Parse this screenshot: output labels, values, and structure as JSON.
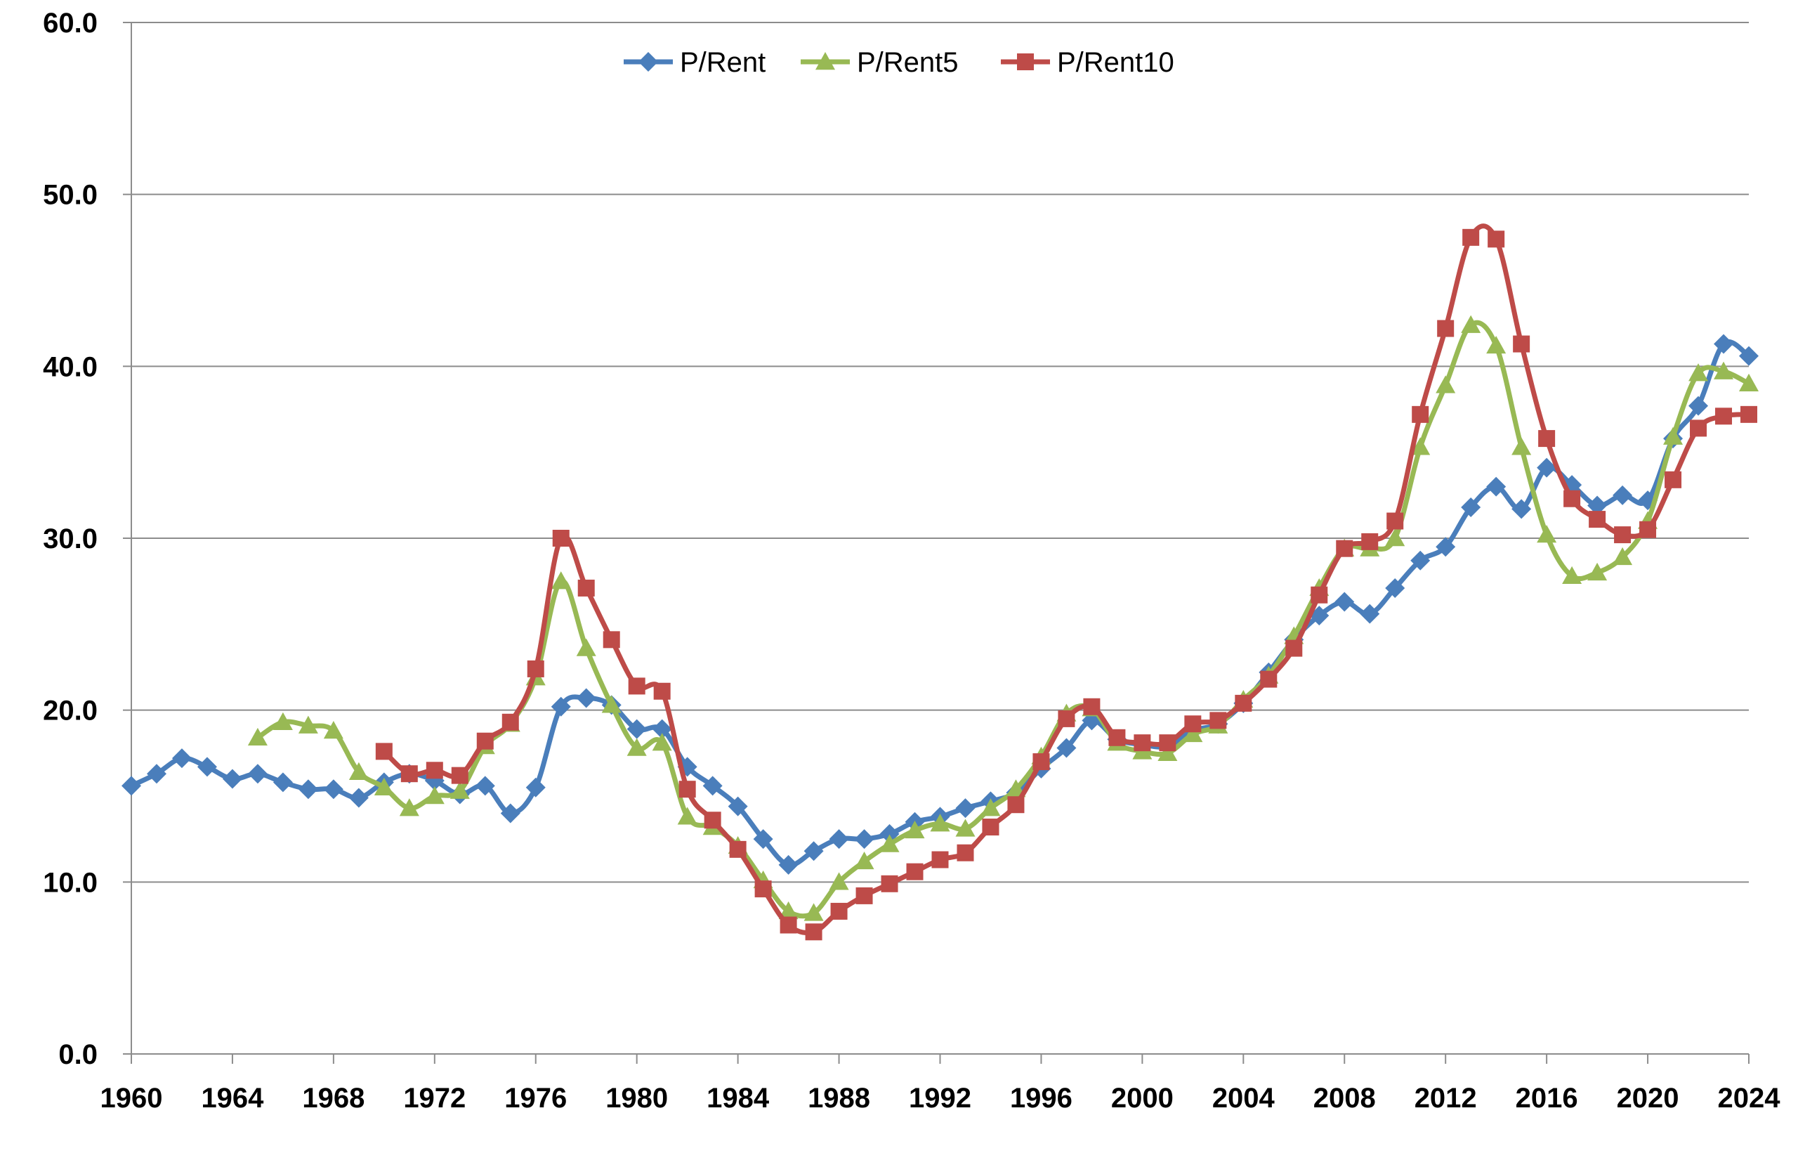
{
  "chart_data": {
    "type": "line",
    "title": "",
    "xlabel": "",
    "ylabel": "",
    "xlim": [
      1960,
      2024
    ],
    "ylim": [
      0,
      60
    ],
    "x_ticks": [
      1960,
      1964,
      1968,
      1972,
      1976,
      1980,
      1984,
      1988,
      1992,
      1996,
      2000,
      2004,
      2008,
      2012,
      2016,
      2020,
      2024
    ],
    "x_tick_labels": [
      "1960",
      "1964",
      "1968",
      "1972",
      "1976",
      "1980",
      "1984",
      "1988",
      "1992",
      "1996",
      "2000",
      "2004",
      "2008",
      "2012",
      "2016",
      "2020",
      "2024"
    ],
    "y_ticks": [
      0,
      10,
      20,
      30,
      40,
      50,
      60
    ],
    "y_tick_labels": [
      "0.0",
      "10.0",
      "20.0",
      "30.0",
      "40.0",
      "50.0",
      "60.0"
    ],
    "grid": "horizontal",
    "legend_position": "top-center",
    "series": [
      {
        "name": "P/Rent",
        "color": "#4a7ebb",
        "marker": "diamond",
        "points": [
          [
            1960,
            15.6
          ],
          [
            1961,
            16.3
          ],
          [
            1962,
            17.2
          ],
          [
            1963,
            16.7
          ],
          [
            1964,
            16.0
          ],
          [
            1965,
            16.3
          ],
          [
            1966,
            15.8
          ],
          [
            1967,
            15.4
          ],
          [
            1968,
            15.4
          ],
          [
            1969,
            14.9
          ],
          [
            1970,
            15.8
          ],
          [
            1971,
            16.3
          ],
          [
            1972,
            15.9
          ],
          [
            1973,
            15.1
          ],
          [
            1974,
            15.6
          ],
          [
            1975,
            14.0
          ],
          [
            1976,
            15.5
          ],
          [
            1977,
            20.2
          ],
          [
            1978,
            20.7
          ],
          [
            1979,
            20.3
          ],
          [
            1980,
            18.9
          ],
          [
            1981,
            18.9
          ],
          [
            1982,
            16.7
          ],
          [
            1983,
            15.6
          ],
          [
            1984,
            14.4
          ],
          [
            1985,
            12.5
          ],
          [
            1986,
            11.0
          ],
          [
            1987,
            11.8
          ],
          [
            1988,
            12.5
          ],
          [
            1989,
            12.5
          ],
          [
            1990,
            12.8
          ],
          [
            1991,
            13.5
          ],
          [
            1992,
            13.8
          ],
          [
            1993,
            14.3
          ],
          [
            1994,
            14.7
          ],
          [
            1995,
            15.2
          ],
          [
            1996,
            16.6
          ],
          [
            1997,
            17.8
          ],
          [
            1998,
            19.4
          ],
          [
            1999,
            18.3
          ],
          [
            2000,
            18.0
          ],
          [
            2001,
            17.9
          ],
          [
            2002,
            18.8
          ],
          [
            2003,
            19.2
          ],
          [
            2004,
            20.4
          ],
          [
            2005,
            22.2
          ],
          [
            2006,
            24.1
          ],
          [
            2007,
            25.5
          ],
          [
            2008,
            26.3
          ],
          [
            2009,
            25.6
          ],
          [
            2010,
            27.1
          ],
          [
            2011,
            28.7
          ],
          [
            2012,
            29.5
          ],
          [
            2013,
            31.8
          ],
          [
            2014,
            33.0
          ],
          [
            2015,
            31.7
          ],
          [
            2016,
            34.1
          ],
          [
            2017,
            33.1
          ],
          [
            2018,
            31.9
          ],
          [
            2019,
            32.5
          ],
          [
            2020,
            32.2
          ],
          [
            2021,
            35.8
          ],
          [
            2022,
            37.7
          ],
          [
            2023,
            41.3
          ],
          [
            2024,
            40.6
          ]
        ]
      },
      {
        "name": "P/Rent5",
        "color": "#98b954",
        "marker": "triangle",
        "points": [
          [
            1965,
            18.4
          ],
          [
            1966,
            19.3
          ],
          [
            1967,
            19.1
          ],
          [
            1968,
            18.8
          ],
          [
            1969,
            16.4
          ],
          [
            1970,
            15.5
          ],
          [
            1971,
            14.3
          ],
          [
            1972,
            15.0
          ],
          [
            1973,
            15.3
          ],
          [
            1974,
            17.9
          ],
          [
            1975,
            19.2
          ],
          [
            1976,
            21.9
          ],
          [
            1977,
            27.5
          ],
          [
            1978,
            23.6
          ],
          [
            1979,
            20.3
          ],
          [
            1980,
            17.8
          ],
          [
            1981,
            18.1
          ],
          [
            1982,
            13.8
          ],
          [
            1983,
            13.2
          ],
          [
            1984,
            12.1
          ],
          [
            1985,
            10.1
          ],
          [
            1986,
            8.3
          ],
          [
            1987,
            8.2
          ],
          [
            1988,
            10.0
          ],
          [
            1989,
            11.2
          ],
          [
            1990,
            12.2
          ],
          [
            1991,
            13.0
          ],
          [
            1992,
            13.4
          ],
          [
            1993,
            13.1
          ],
          [
            1994,
            14.3
          ],
          [
            1995,
            15.4
          ],
          [
            1996,
            17.3
          ],
          [
            1997,
            19.8
          ],
          [
            1998,
            20.1
          ],
          [
            1999,
            18.1
          ],
          [
            2000,
            17.6
          ],
          [
            2001,
            17.5
          ],
          [
            2002,
            18.6
          ],
          [
            2003,
            19.1
          ],
          [
            2004,
            20.6
          ],
          [
            2005,
            22.0
          ],
          [
            2006,
            24.3
          ],
          [
            2007,
            27.1
          ],
          [
            2008,
            29.4
          ],
          [
            2009,
            29.4
          ],
          [
            2010,
            30.0
          ],
          [
            2011,
            35.3
          ],
          [
            2012,
            38.9
          ],
          [
            2013,
            42.4
          ],
          [
            2014,
            41.2
          ],
          [
            2015,
            35.3
          ],
          [
            2016,
            30.2
          ],
          [
            2017,
            27.8
          ],
          [
            2018,
            28.0
          ],
          [
            2019,
            28.9
          ],
          [
            2020,
            31.0
          ],
          [
            2021,
            35.9
          ],
          [
            2022,
            39.6
          ],
          [
            2023,
            39.7
          ],
          [
            2024,
            39.0
          ]
        ]
      },
      {
        "name": "P/Rent10",
        "color": "#be4b48",
        "marker": "square",
        "points": [
          [
            1970,
            17.6
          ],
          [
            1971,
            16.3
          ],
          [
            1972,
            16.5
          ],
          [
            1973,
            16.2
          ],
          [
            1974,
            18.2
          ],
          [
            1975,
            19.3
          ],
          [
            1976,
            22.4
          ],
          [
            1977,
            30.0
          ],
          [
            1978,
            27.1
          ],
          [
            1979,
            24.1
          ],
          [
            1980,
            21.4
          ],
          [
            1981,
            21.1
          ],
          [
            1982,
            15.4
          ],
          [
            1983,
            13.6
          ],
          [
            1984,
            11.9
          ],
          [
            1985,
            9.6
          ],
          [
            1986,
            7.5
          ],
          [
            1987,
            7.1
          ],
          [
            1988,
            8.3
          ],
          [
            1989,
            9.2
          ],
          [
            1990,
            9.9
          ],
          [
            1991,
            10.6
          ],
          [
            1992,
            11.3
          ],
          [
            1993,
            11.7
          ],
          [
            1994,
            13.2
          ],
          [
            1995,
            14.5
          ],
          [
            1996,
            17.0
          ],
          [
            1997,
            19.5
          ],
          [
            1998,
            20.2
          ],
          [
            1999,
            18.4
          ],
          [
            2000,
            18.1
          ],
          [
            2001,
            18.1
          ],
          [
            2002,
            19.2
          ],
          [
            2003,
            19.4
          ],
          [
            2004,
            20.4
          ],
          [
            2005,
            21.8
          ],
          [
            2006,
            23.6
          ],
          [
            2007,
            26.7
          ],
          [
            2008,
            29.4
          ],
          [
            2009,
            29.8
          ],
          [
            2010,
            31.0
          ],
          [
            2011,
            37.2
          ],
          [
            2012,
            42.2
          ],
          [
            2013,
            47.5
          ],
          [
            2014,
            47.4
          ],
          [
            2015,
            41.3
          ],
          [
            2016,
            35.8
          ],
          [
            2017,
            32.3
          ],
          [
            2018,
            31.1
          ],
          [
            2019,
            30.2
          ],
          [
            2020,
            30.5
          ],
          [
            2021,
            33.4
          ],
          [
            2022,
            36.4
          ],
          [
            2023,
            37.1
          ],
          [
            2024,
            37.2
          ]
        ]
      }
    ]
  }
}
